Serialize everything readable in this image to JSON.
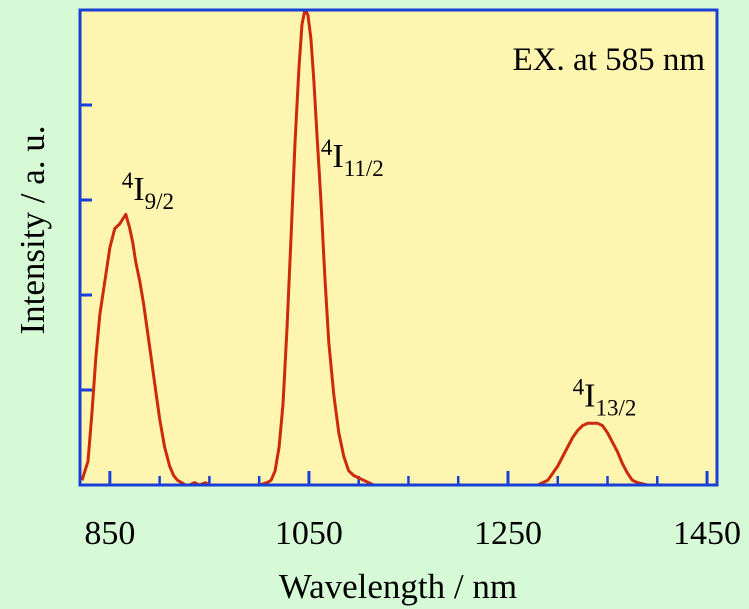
{
  "chart_data": {
    "type": "line",
    "xlabel": "Wavelength / nm",
    "ylabel": "Intensity / a. u.",
    "xlim": [
      820,
      1460
    ],
    "ylim": [
      0,
      1
    ],
    "x_ticks": [
      850,
      1050,
      1250,
      1450
    ],
    "x_tick_labels": [
      "850",
      "1050",
      "1250",
      "1450"
    ],
    "y_ticks": [
      0.2,
      0.4,
      0.6,
      0.8
    ],
    "grid": false,
    "note": "EX. at 585 nm",
    "colors": {
      "line": "#cc2a0a",
      "frame": "#1a3fd6",
      "plot_bg": "#fdf5b0",
      "page_bg": "#d6fad6"
    },
    "series": [
      {
        "x": [
          822,
          828,
          832,
          836,
          840,
          845,
          850,
          855,
          860,
          863,
          866,
          870,
          873,
          876,
          880,
          884,
          888,
          892,
          896,
          900,
          905,
          910,
          914,
          918,
          922,
          926,
          930,
          935,
          940,
          946,
          950,
          955,
          960,
          970,
          980,
          990,
          1000,
          1008,
          1012,
          1016,
          1020,
          1024,
          1028,
          1032,
          1036,
          1040,
          1043,
          1046,
          1049,
          1052,
          1055,
          1058,
          1062,
          1066,
          1070,
          1075,
          1080,
          1085,
          1090,
          1095,
          1100,
          1105,
          1110,
          1115,
          1120,
          1125,
          1130,
          1140,
          1160,
          1180,
          1200,
          1220,
          1240,
          1260,
          1280,
          1285,
          1290,
          1295,
          1300,
          1305,
          1310,
          1315,
          1320,
          1325,
          1330,
          1335,
          1340,
          1345,
          1350,
          1355,
          1360,
          1365,
          1370,
          1375,
          1380,
          1390,
          1400,
          1420,
          1440,
          1460
        ],
        "y": [
          0.01,
          0.05,
          0.15,
          0.27,
          0.36,
          0.43,
          0.5,
          0.54,
          0.55,
          0.56,
          0.57,
          0.54,
          0.51,
          0.47,
          0.43,
          0.38,
          0.32,
          0.26,
          0.2,
          0.14,
          0.08,
          0.04,
          0.02,
          0.01,
          0.005,
          0.0,
          0.0,
          0.005,
          0.0,
          0.005,
          0.0,
          0.0,
          0.0,
          0.0,
          0.0,
          0.0,
          0.0,
          0.005,
          0.01,
          0.03,
          0.08,
          0.17,
          0.33,
          0.52,
          0.72,
          0.88,
          0.97,
          1.0,
          0.99,
          0.94,
          0.85,
          0.74,
          0.6,
          0.44,
          0.3,
          0.19,
          0.11,
          0.06,
          0.03,
          0.02,
          0.015,
          0.01,
          0.005,
          0.0,
          0.0,
          0.0,
          0.0,
          0.0,
          0.0,
          0.0,
          0.0,
          0.0,
          0.0,
          0.0,
          0.0,
          0.005,
          0.01,
          0.025,
          0.04,
          0.06,
          0.08,
          0.1,
          0.115,
          0.125,
          0.13,
          0.13,
          0.13,
          0.125,
          0.11,
          0.09,
          0.07,
          0.045,
          0.025,
          0.01,
          0.005,
          0.0,
          0.0,
          0.0,
          0.0,
          0.0
        ]
      }
    ],
    "annotations": [
      {
        "sup": "4",
        "base": "I",
        "sub": "9/2",
        "x": 862,
        "y": 0.6
      },
      {
        "sup": "4",
        "base": "I",
        "sub": "11/2",
        "x": 1062,
        "y": 0.67
      },
      {
        "sup": "4",
        "base": "I",
        "sub": "13/2",
        "x": 1315,
        "y": 0.165
      }
    ]
  }
}
